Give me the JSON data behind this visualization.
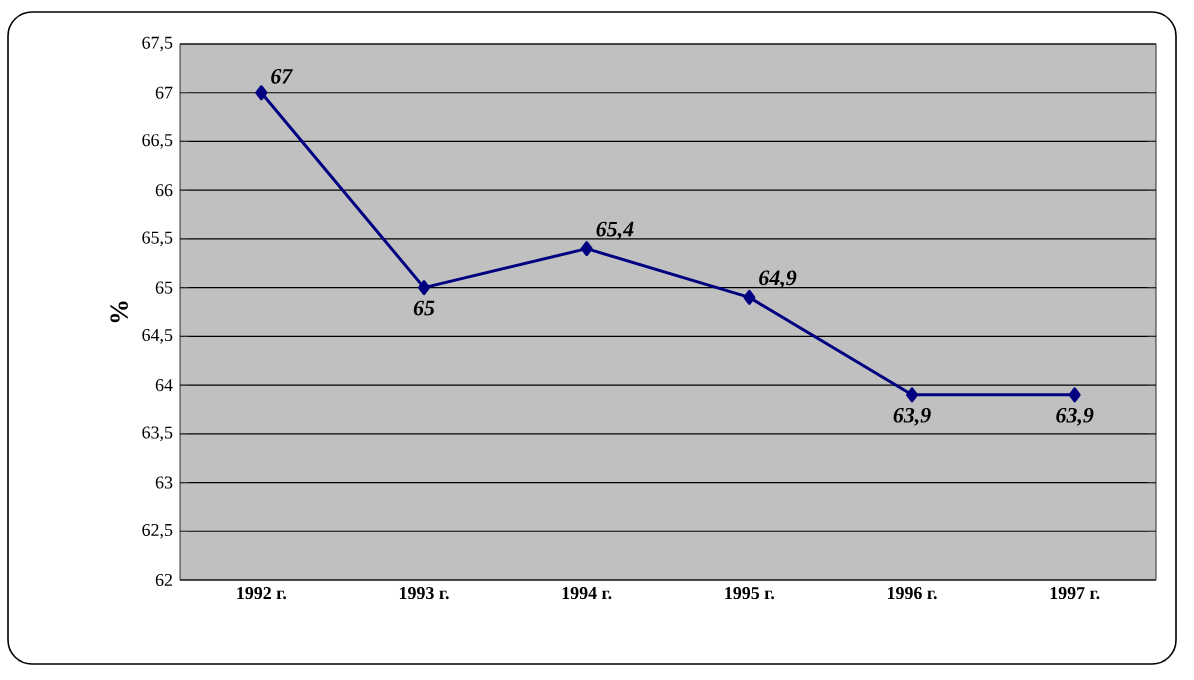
{
  "chart_data": {
    "type": "line",
    "ylabel": "%",
    "categories": [
      "1992 г.",
      "1993 г.",
      "1994 г.",
      "1995 г.",
      "1996 г.",
      "1997 г."
    ],
    "series": [
      {
        "color": "#000080",
        "values": [
          67,
          65,
          65.4,
          64.9,
          63.9,
          63.9
        ],
        "value_labels": [
          "67",
          "65",
          "65,4",
          "64,9",
          "63,9",
          "63,9"
        ]
      }
    ],
    "ylim": [
      62,
      67.5
    ],
    "yticks": [
      {
        "value": 62,
        "label": "62"
      },
      {
        "value": 62.5,
        "label": "62,5"
      },
      {
        "value": 63,
        "label": "63"
      },
      {
        "value": 63.5,
        "label": "63,5"
      },
      {
        "value": 64,
        "label": "64"
      },
      {
        "value": 64.5,
        "label": "64,5"
      },
      {
        "value": 65,
        "label": "65"
      },
      {
        "value": 65.5,
        "label": "65,5"
      },
      {
        "value": 66,
        "label": "66"
      },
      {
        "value": 66.5,
        "label": "66,5"
      },
      {
        "value": 67,
        "label": "67"
      },
      {
        "value": 67.5,
        "label": "67,5"
      }
    ],
    "grid": "y",
    "marker": "diamond",
    "line_style": "solid"
  }
}
